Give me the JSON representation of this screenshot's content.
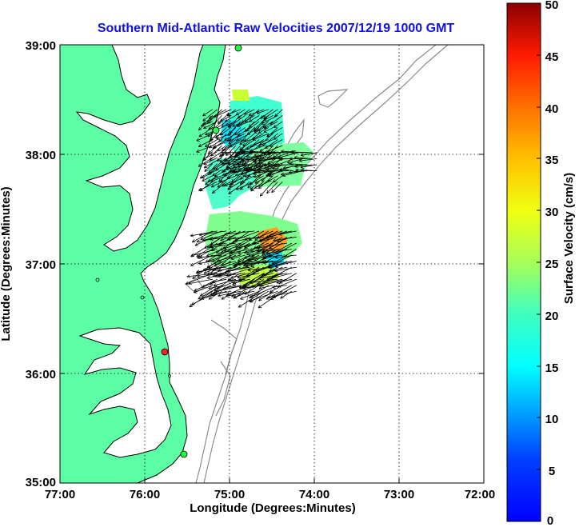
{
  "title": "Southern Mid-Atlantic Raw Velocities 2007/12/19 1000 GMT",
  "xlabel": "Longitude (Degrees:Minutes)",
  "ylabel": "Latitude (Degrees:Minutes)",
  "colorbar_label": "Surface Velocity (cm/s)",
  "x_ticks": [
    "77:00",
    "76:00",
    "75:00",
    "74:00",
    "73:00",
    "72:00"
  ],
  "y_ticks": [
    "39:00",
    "38:00",
    "37:00",
    "36:00",
    "35:00"
  ],
  "colorbar_ticks": [
    "50",
    "45",
    "40",
    "35",
    "30",
    "25",
    "20",
    "15",
    "10",
    "5",
    "0"
  ],
  "colors": {
    "land": "#5cffa6",
    "title": "#1010e8",
    "bathymetry": "#8c8c8c",
    "grid": "#000000"
  },
  "stations": [
    {
      "lon": -75.1,
      "lat": 38.97,
      "status": "active"
    },
    {
      "lon": -75.1,
      "lat": 38.22,
      "status": "active"
    },
    {
      "lon": -75.55,
      "lat": 36.2,
      "status": "inactive"
    },
    {
      "lon": -75.45,
      "lat": 35.2,
      "status": "active"
    }
  ],
  "chart_data": {
    "type": "map",
    "xlim": [
      -77.0,
      -72.0
    ],
    "ylim": [
      35.0,
      39.0
    ],
    "colorbar_range": [
      0,
      50
    ],
    "colorbar_units": "cm/s",
    "grid": true,
    "vector_regions": [
      {
        "lon_range": [
          -75.2,
          -74.35
        ],
        "lat_range": [
          37.75,
          38.45
        ],
        "speed_cm_s": [
          12,
          24
        ],
        "direction": "southwest"
      },
      {
        "lon_range": [
          -74.85,
          -73.95
        ],
        "lat_range": [
          37.85,
          38.05
        ],
        "speed_cm_s": [
          18,
          25
        ],
        "direction": "west"
      },
      {
        "lon_range": [
          -75.2,
          -74.2
        ],
        "lat_range": [
          36.75,
          37.3
        ],
        "speed_cm_s": [
          15,
          35
        ],
        "direction": "west-southwest"
      }
    ]
  }
}
